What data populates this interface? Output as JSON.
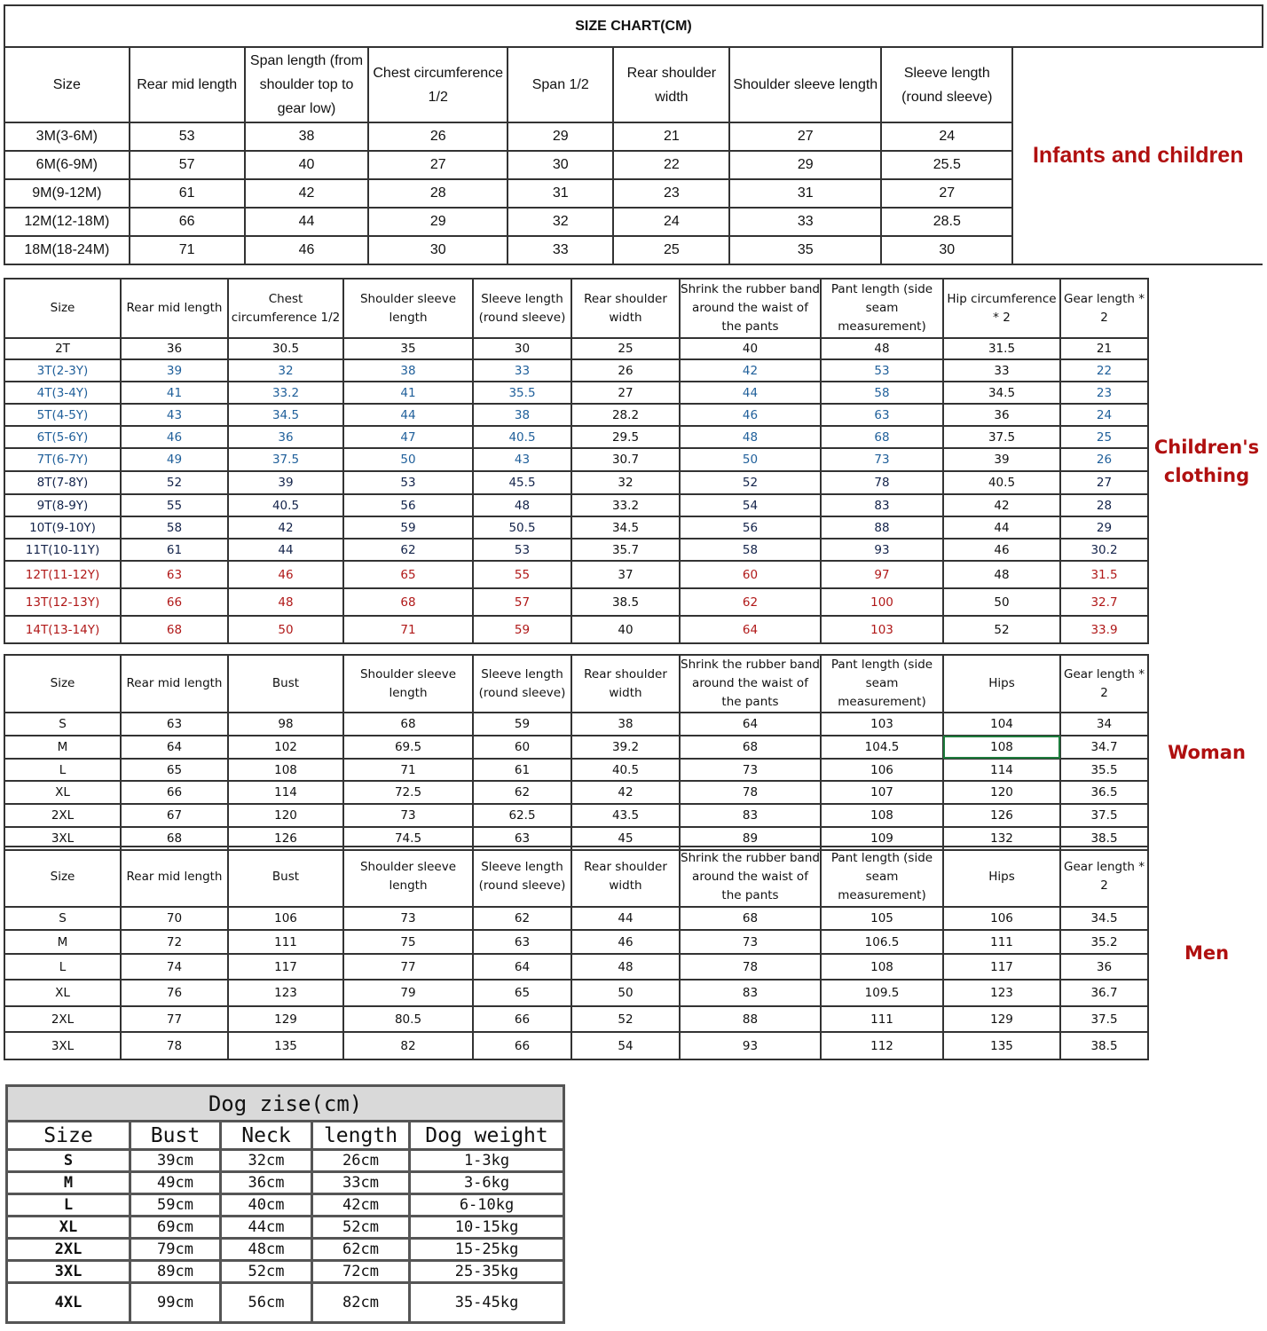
{
  "title": "SIZE CHART(CM)",
  "infants": {
    "label": "Infants and children",
    "headers": [
      "Size",
      "Rear mid length",
      "Span length (from shoulder top to gear low)",
      "Chest circumference 1/2",
      "Span 1/2",
      "Rear shoulder width",
      "Shoulder sleeve length",
      "Sleeve length (round sleeve)"
    ],
    "rows": [
      [
        "3M(3-6M)",
        "53",
        "38",
        "26",
        "29",
        "21",
        "27",
        "24"
      ],
      [
        "6M(6-9M)",
        "57",
        "40",
        "27",
        "30",
        "22",
        "29",
        "25.5"
      ],
      [
        "9M(9-12M)",
        "61",
        "42",
        "28",
        "31",
        "23",
        "31",
        "27"
      ],
      [
        "12M(12-18M)",
        "66",
        "44",
        "29",
        "32",
        "24",
        "33",
        "28.5"
      ],
      [
        "18M(18-24M)",
        "71",
        "46",
        "30",
        "33",
        "25",
        "35",
        "30"
      ]
    ]
  },
  "children": {
    "label": "Children's clothing",
    "headers": [
      "Size",
      "Rear mid length",
      "Chest circumference 1/2",
      "Shoulder sleeve length",
      "Sleeve length (round sleeve)",
      "Rear shoulder width",
      "Shrink the rubber band around the waist of the pants",
      "Pant length (side seam measurement)",
      "Hip circumference * 2",
      "Gear length * 2"
    ],
    "row_colors": [
      "black",
      "blue",
      "blue",
      "blue",
      "blue",
      "blue",
      "navy",
      "navy",
      "navy",
      "navy",
      "red",
      "red",
      "red"
    ],
    "colors": {
      "blue": "#1f5f9a",
      "navy": "#13234a",
      "red": "#b01818",
      "label": "#b01010"
    },
    "rows": [
      [
        "2T",
        "36",
        "30.5",
        "35",
        "30",
        "25",
        "40",
        "48",
        "31.5",
        "21"
      ],
      [
        "3T(2-3Y)",
        "39",
        "32",
        "38",
        "33",
        "26",
        "42",
        "53",
        "33",
        "22"
      ],
      [
        "4T(3-4Y)",
        "41",
        "33.2",
        "41",
        "35.5",
        "27",
        "44",
        "58",
        "34.5",
        "23"
      ],
      [
        "5T(4-5Y)",
        "43",
        "34.5",
        "44",
        "38",
        "28.2",
        "46",
        "63",
        "36",
        "24"
      ],
      [
        "6T(5-6Y)",
        "46",
        "36",
        "47",
        "40.5",
        "29.5",
        "48",
        "68",
        "37.5",
        "25"
      ],
      [
        "7T(6-7Y)",
        "49",
        "37.5",
        "50",
        "43",
        "30.7",
        "50",
        "73",
        "39",
        "26"
      ],
      [
        "8T(7-8Y)",
        "52",
        "39",
        "53",
        "45.5",
        "32",
        "52",
        "78",
        "40.5",
        "27"
      ],
      [
        "9T(8-9Y)",
        "55",
        "40.5",
        "56",
        "48",
        "33.2",
        "54",
        "83",
        "42",
        "28"
      ],
      [
        "10T(9-10Y)",
        "58",
        "42",
        "59",
        "50.5",
        "34.5",
        "56",
        "88",
        "44",
        "29"
      ],
      [
        "11T(10-11Y)",
        "61",
        "44",
        "62",
        "53",
        "35.7",
        "58",
        "93",
        "46",
        "30.2"
      ],
      [
        "12T(11-12Y)",
        "63",
        "46",
        "65",
        "55",
        "37",
        "60",
        "97",
        "48",
        "31.5"
      ],
      [
        "13T(12-13Y)",
        "66",
        "48",
        "68",
        "57",
        "38.5",
        "62",
        "100",
        "50",
        "32.7"
      ],
      [
        "14T(13-14Y)",
        "68",
        "50",
        "71",
        "59",
        "40",
        "64",
        "103",
        "52",
        "33.9"
      ]
    ]
  },
  "woman": {
    "label": "Woman",
    "headers": [
      "Size",
      "Rear mid length",
      "Bust",
      "Shoulder sleeve length",
      "Sleeve length (round sleeve)",
      "Rear shoulder width",
      "Shrink the rubber band around the waist of the pants",
      "Pant length (side seam measurement)",
      "Hips",
      "Gear length * 2"
    ],
    "rows": [
      [
        "S",
        "63",
        "98",
        "68",
        "59",
        "38",
        "64",
        "103",
        "104",
        "34"
      ],
      [
        "M",
        "64",
        "102",
        "69.5",
        "60",
        "39.2",
        "68",
        "104.5",
        "108",
        "34.7"
      ],
      [
        "L",
        "65",
        "108",
        "71",
        "61",
        "40.5",
        "73",
        "106",
        "114",
        "35.5"
      ],
      [
        "XL",
        "66",
        "114",
        "72.5",
        "62",
        "42",
        "78",
        "107",
        "120",
        "36.5"
      ],
      [
        "2XL",
        "67",
        "120",
        "73",
        "62.5",
        "43.5",
        "83",
        "108",
        "126",
        "37.5"
      ],
      [
        "3XL",
        "68",
        "126",
        "74.5",
        "63",
        "45",
        "89",
        "109",
        "132",
        "38.5"
      ]
    ],
    "selected_cell": {
      "row": 1,
      "col": 8
    }
  },
  "men": {
    "label": "Men",
    "headers": [
      "Size",
      "Rear mid length",
      "Bust",
      "Shoulder sleeve length",
      "Sleeve length (round sleeve)",
      "Rear shoulder width",
      "Shrink the rubber band around the waist of the pants",
      "Pant length (side seam measurement)",
      "Hips",
      "Gear length * 2"
    ],
    "rows": [
      [
        "S",
        "70",
        "106",
        "73",
        "62",
        "44",
        "68",
        "105",
        "106",
        "34.5"
      ],
      [
        "M",
        "72",
        "111",
        "75",
        "63",
        "46",
        "73",
        "106.5",
        "111",
        "35.2"
      ],
      [
        "L",
        "74",
        "117",
        "77",
        "64",
        "48",
        "78",
        "108",
        "117",
        "36"
      ],
      [
        "XL",
        "76",
        "123",
        "79",
        "65",
        "50",
        "83",
        "109.5",
        "123",
        "36.7"
      ],
      [
        "2XL",
        "77",
        "129",
        "80.5",
        "66",
        "52",
        "88",
        "111",
        "129",
        "37.5"
      ],
      [
        "3XL",
        "78",
        "135",
        "82",
        "66",
        "54",
        "93",
        "112",
        "135",
        "38.5"
      ]
    ]
  },
  "dog": {
    "title": "Dog zise(cm)",
    "headers": [
      "Size",
      "Bust",
      "Neck",
      "length",
      "Dog weight"
    ],
    "rows": [
      [
        "S",
        "39cm",
        "32cm",
        "26cm",
        "1-3kg"
      ],
      [
        "M",
        "49cm",
        "36cm",
        "33cm",
        "3-6kg"
      ],
      [
        "L",
        "59cm",
        "40cm",
        "42cm",
        "6-10kg"
      ],
      [
        "XL",
        "69cm",
        "44cm",
        "52cm",
        "10-15kg"
      ],
      [
        "2XL",
        "79cm",
        "48cm",
        "62cm",
        "15-25kg"
      ],
      [
        "3XL",
        "89cm",
        "52cm",
        "72cm",
        "25-35kg"
      ],
      [
        "4XL",
        "99cm",
        "56cm",
        "82cm",
        "35-45kg"
      ]
    ]
  }
}
